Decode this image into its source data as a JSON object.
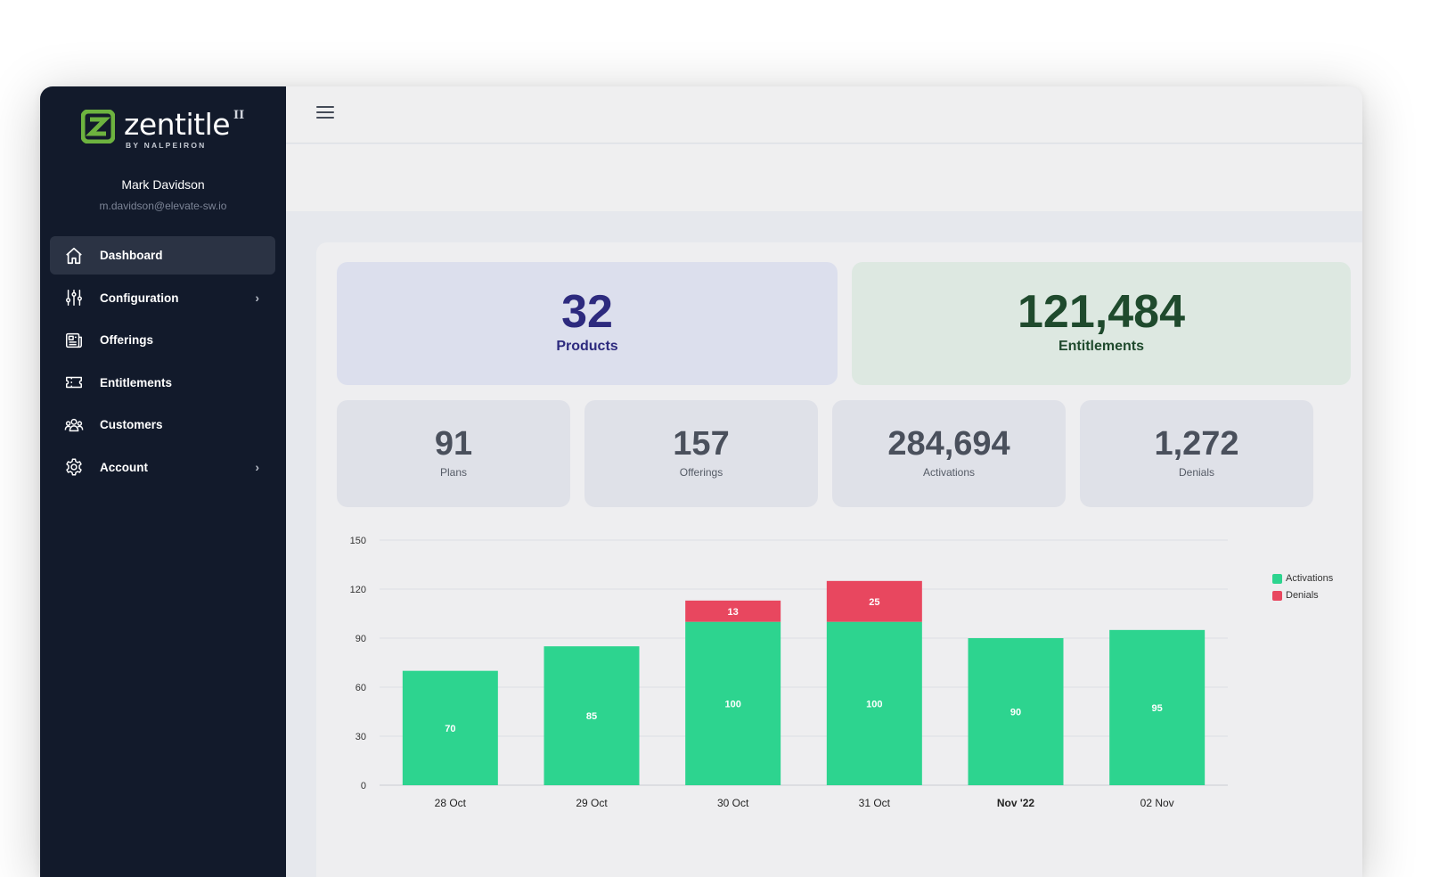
{
  "app": {
    "logo_word": "zentitle",
    "logo_sup": "II",
    "logo_sub": "BY NALPEIRON",
    "brand_green": "#6db33f"
  },
  "user": {
    "name": "Mark Davidson",
    "email": "m.davidson@elevate-sw.io"
  },
  "sidebar": {
    "items": [
      {
        "label": "Dashboard",
        "icon": "home-icon",
        "active": true,
        "has_submenu": false
      },
      {
        "label": "Configuration",
        "icon": "sliders-icon",
        "active": false,
        "has_submenu": true
      },
      {
        "label": "Offerings",
        "icon": "newspaper-icon",
        "active": false,
        "has_submenu": false
      },
      {
        "label": "Entitlements",
        "icon": "ticket-icon",
        "active": false,
        "has_submenu": false
      },
      {
        "label": "Customers",
        "icon": "users-icon",
        "active": false,
        "has_submenu": false
      },
      {
        "label": "Account",
        "icon": "gear-icon",
        "active": false,
        "has_submenu": true
      }
    ],
    "chevron": "›"
  },
  "stats": {
    "products": {
      "value": "32",
      "label": "Products"
    },
    "entitlements": {
      "value": "121,484",
      "label": "Entitlements"
    },
    "plans": {
      "value": "91",
      "label": "Plans"
    },
    "offerings": {
      "value": "157",
      "label": "Offerings"
    },
    "activations": {
      "value": "284,694",
      "label": "Activations"
    },
    "denials": {
      "value": "1,272",
      "label": "Denials"
    }
  },
  "chart_data": {
    "type": "bar",
    "stacked": true,
    "categories": [
      "28 Oct",
      "29 Oct",
      "30 Oct",
      "31 Oct",
      "Nov '22",
      "02 Nov"
    ],
    "bold_categories": [
      "Nov '22"
    ],
    "series": [
      {
        "name": "Activations",
        "color": "#2dd48f",
        "values": [
          70,
          85,
          100,
          100,
          90,
          95
        ]
      },
      {
        "name": "Denials",
        "color": "#e8475f",
        "values": [
          0,
          0,
          13,
          25,
          0,
          0
        ]
      }
    ],
    "ylim": [
      0,
      150
    ],
    "yticks": [
      0,
      30,
      60,
      90,
      120,
      150
    ],
    "grid": true,
    "legend_position": "right"
  }
}
